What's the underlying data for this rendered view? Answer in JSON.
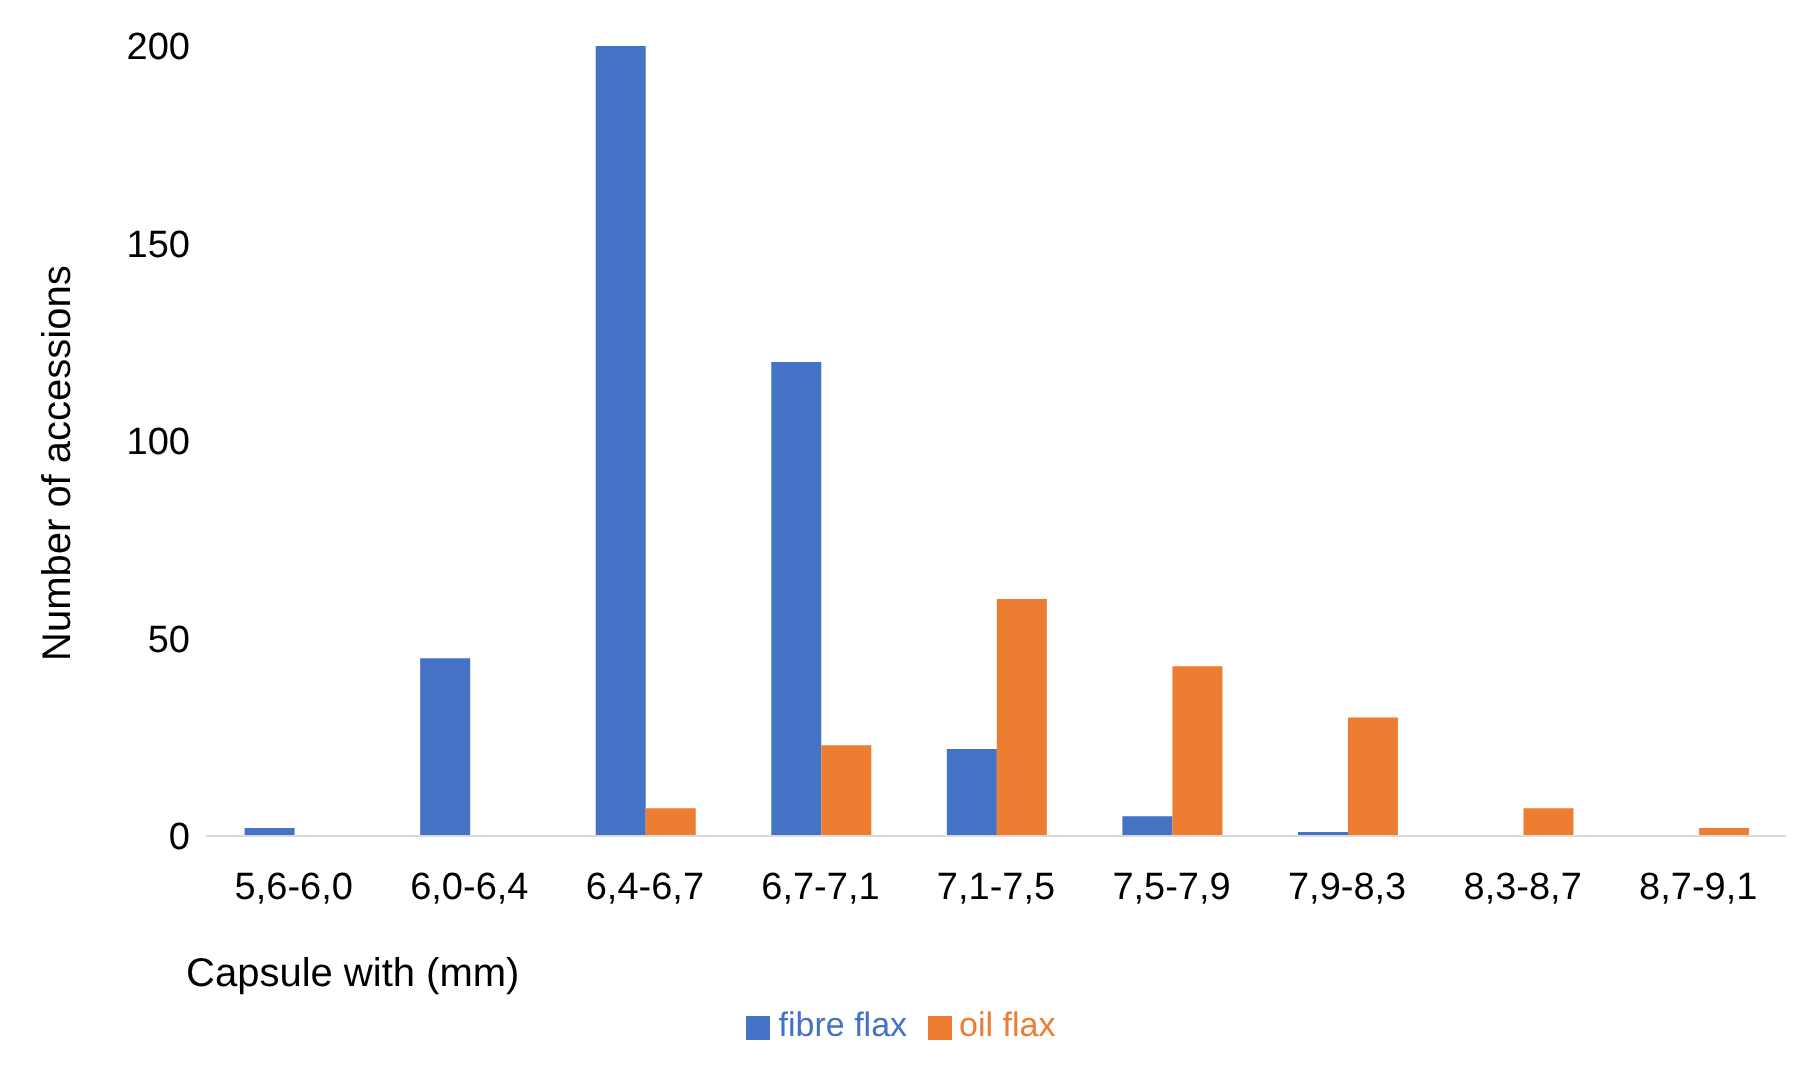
{
  "chart_data": {
    "type": "bar",
    "xlabel": "Capsule with (mm)",
    "ylabel": "Number of accessions",
    "categories": [
      "5,6-6,0",
      "6,0-6,4",
      "6,4-6,7",
      "6,7-7,1",
      "7,1-7,5",
      "7,5-7,9",
      "7,9-8,3",
      "8,3-8,7",
      "8,7-9,1"
    ],
    "series": [
      {
        "name": "fibre flax",
        "color": "#4472c4",
        "values": [
          2,
          45,
          200,
          120,
          22,
          5,
          1,
          0,
          0
        ]
      },
      {
        "name": "oil flax",
        "color": "#ed7d31",
        "values": [
          0,
          0,
          7,
          23,
          60,
          43,
          30,
          7,
          2
        ]
      }
    ],
    "ylim": [
      0,
      200
    ],
    "yticks": [
      0,
      50,
      100,
      150,
      200
    ],
    "grid": false,
    "legend": "bottom"
  }
}
